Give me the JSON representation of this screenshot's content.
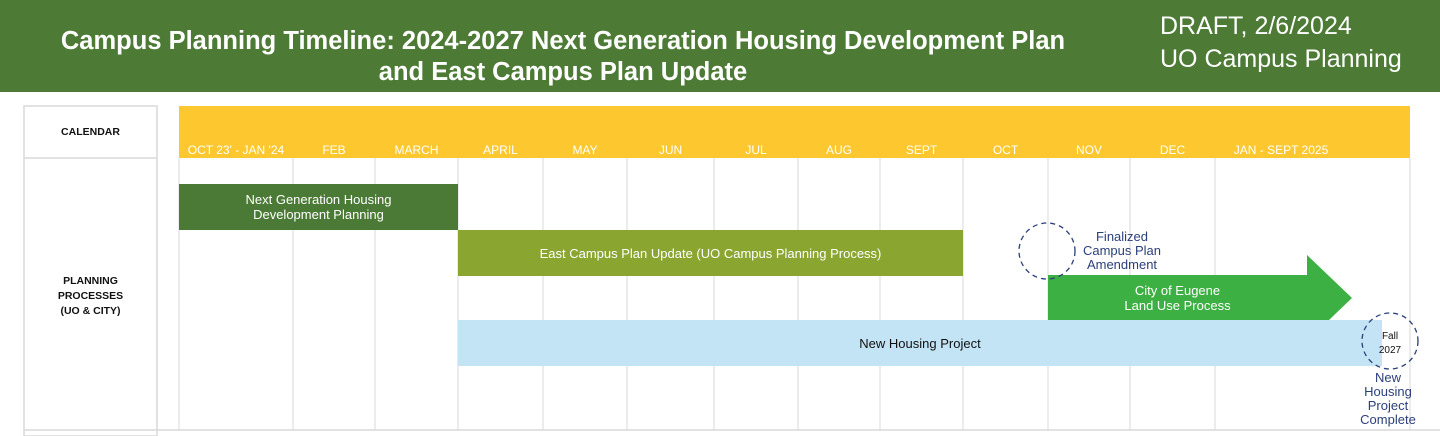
{
  "header": {
    "title_lines": [
      "Campus Planning Timeline: 2024-2027 Next Generation Housing Development Plan",
      "and East Campus Plan Update"
    ],
    "draft_lines": [
      "DRAFT, 2/6/2024",
      "UO Campus Planning"
    ]
  },
  "rows": {
    "calendar_label": "CALENDAR",
    "planning_label_lines": [
      "PLANNING",
      "PROCESSES",
      "(UO & CITY)"
    ]
  },
  "colors": {
    "header_bg": "#4d7a35",
    "calendar_band": "#fdc82f",
    "gridline": "#d9d9d9",
    "dark_green": "#4a7a35",
    "olive_green": "#8aa630",
    "bright_green": "#3cb043",
    "light_blue": "#c3e4f5",
    "annotation_blue": "#2b3f7a"
  },
  "chart_data": {
    "type": "gantt",
    "categories": [
      "OCT 23' - JAN '24",
      "FEB",
      "MARCH",
      "APRIL",
      "MAY",
      "JUN",
      "JUL",
      "AUG",
      "SEPT",
      "OCT",
      "NOV",
      "DEC",
      "JAN - SEPT 2025"
    ],
    "tasks": [
      {
        "label": "Next Generation Housing\nDevelopment Planning",
        "start": "OCT 23' - JAN '24",
        "end": "APRIL",
        "color": "#4a7a35",
        "text_color": "#ffffff",
        "shape": "bar"
      },
      {
        "label": "East Campus Plan Update (UO Campus Planning Process)",
        "start": "APRIL",
        "end": "OCT",
        "color": "#8aa630",
        "text_color": "#ffffff",
        "shape": "bar"
      },
      {
        "label": "City of Eugene\nLand Use Process",
        "start": "NOV",
        "end": "JAN - SEPT 2025",
        "color": "#3cb043",
        "text_color": "#ffffff",
        "shape": "arrow"
      },
      {
        "label": "New Housing Project",
        "start": "APRIL",
        "end": "JAN - SEPT 2025",
        "color": "#c3e4f5",
        "text_color": "#111111",
        "shape": "bar"
      }
    ],
    "milestones": [
      {
        "label": "Finalized\nCampus Plan\nAmendment",
        "at": "OCT"
      },
      {
        "label": "Fall\n2027",
        "label_after": "New\nHousing\nProject\nComplete",
        "at": "JAN - SEPT 2025"
      }
    ]
  }
}
